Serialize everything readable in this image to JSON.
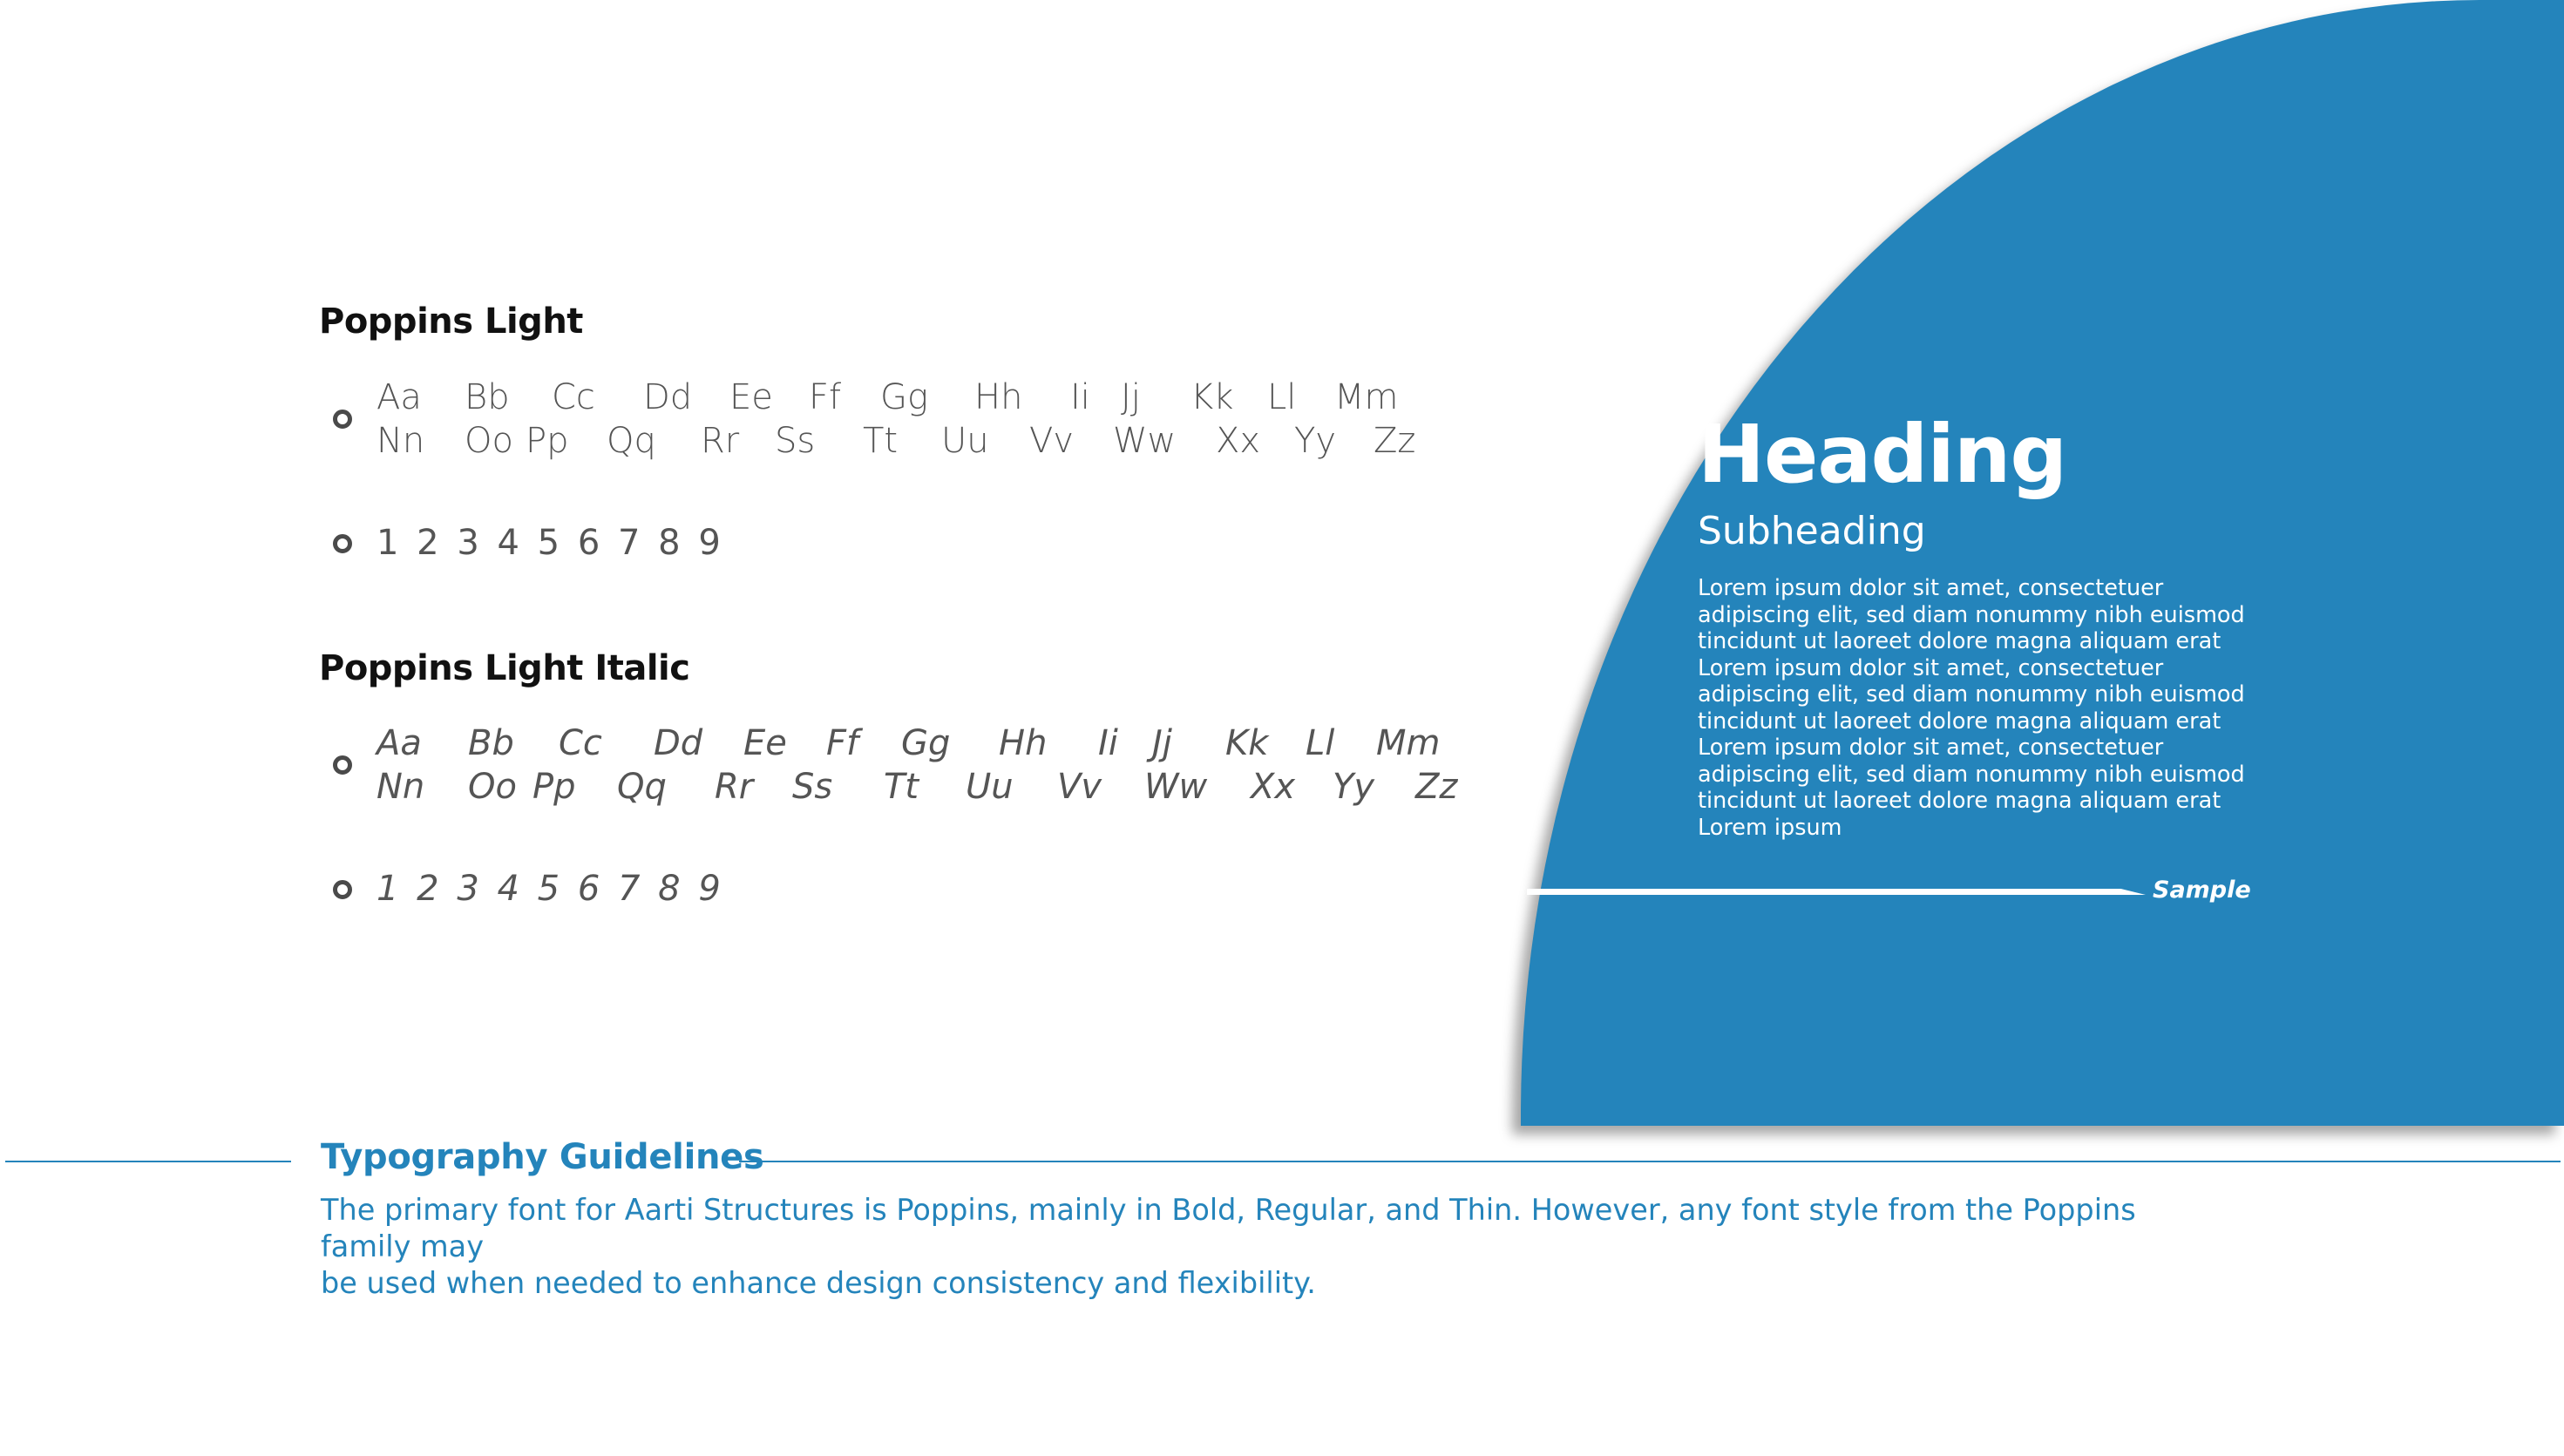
{
  "light": {
    "title": "Poppins Light",
    "row1": [
      "Aa",
      "Bb",
      "Cc",
      "Dd",
      "Ee",
      "Ff",
      "Gg",
      "Hh",
      "Ii",
      "Jj",
      "Kk",
      "Ll",
      "Mm"
    ],
    "row2": [
      "Nn",
      "Oo",
      "Pp",
      "Qq",
      "Rr",
      "Ss",
      "Tt",
      "Uu",
      "Vv",
      "Ww",
      "Xx",
      "Yy",
      "Zz"
    ],
    "digits": "1 2 3 4 5 6 7 8 9"
  },
  "light_italic": {
    "title": "Poppins Light Italic",
    "row1": [
      "Aa",
      "Bb",
      "Cc",
      "Dd",
      "Ee",
      "Ff",
      "Gg",
      "Hh",
      "Ii",
      "Jj",
      "Kk",
      "Ll",
      "Mm"
    ],
    "row2": [
      "Nn",
      "Oo",
      "Pp",
      "Qq",
      "Rr",
      "Ss",
      "Tt",
      "Uu",
      "Vv",
      "Ww",
      "Xx",
      "Yy",
      "Zz"
    ],
    "digits": "1 2 3 4 5 6 7 8 9"
  },
  "sample": {
    "heading": "Heading",
    "subheading": "Subheading",
    "body_lines": [
      "Lorem ipsum dolor sit amet, consectetuer",
      "adipiscing elit, sed diam nonummy nibh euismod",
      "tincidunt ut laoreet dolore magna aliquam erat",
      "Lorem ipsum dolor sit amet, consectetuer",
      "adipiscing elit, sed diam nonummy nibh euismod",
      "tincidunt ut laoreet dolore magna aliquam erat",
      "Lorem ipsum dolor sit amet, consectetuer",
      "adipiscing elit, sed diam nonummy nibh euismod",
      "tincidunt ut laoreet dolore magna aliquam erat",
      "Lorem ipsum"
    ],
    "label": "Sample"
  },
  "guidelines": {
    "title": "Typography Guidelines",
    "text_line1": "The primary font for Aarti Structures is Poppins, mainly in Bold, Regular, and Thin. However, any font style from the Poppins family may",
    "text_line2": "be used when needed to enhance design consistency and flexibility."
  },
  "colors": {
    "brand_blue": "#2484bb",
    "text_dark": "#111111",
    "text_gray": "#555555"
  }
}
